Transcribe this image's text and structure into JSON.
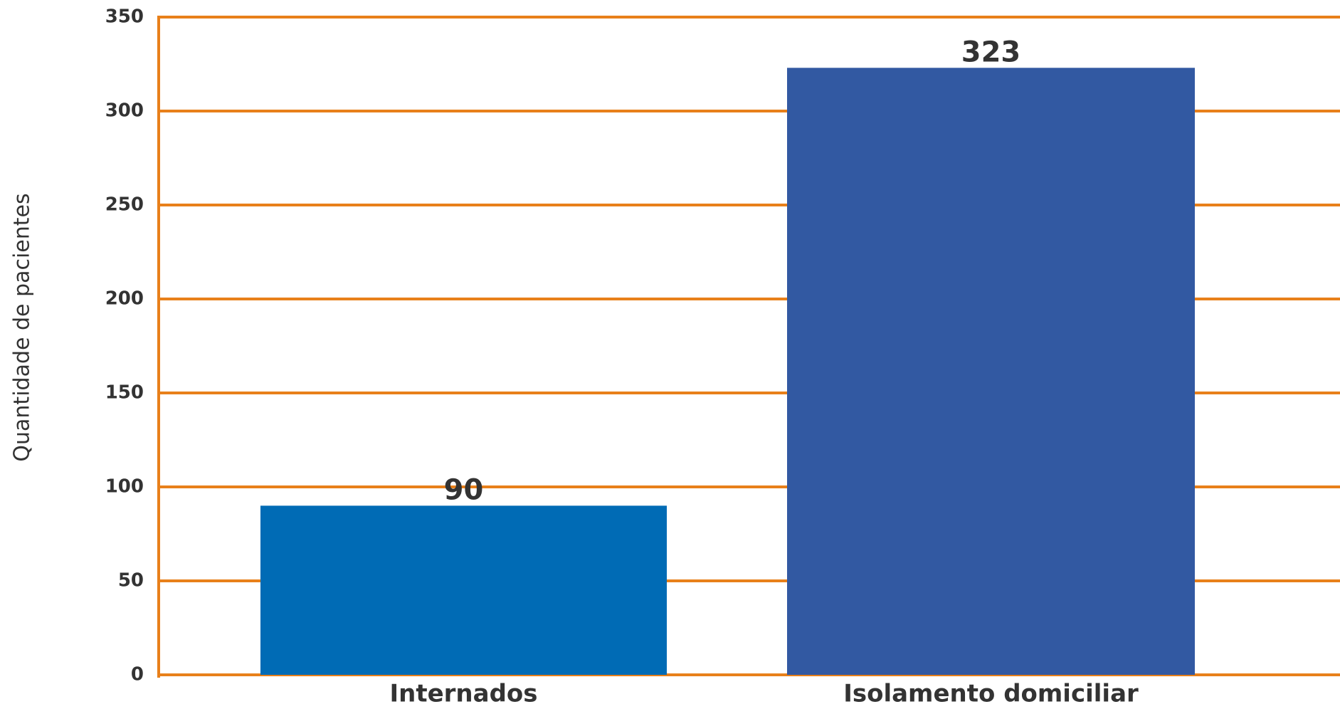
{
  "chart_data": {
    "type": "bar",
    "y_label": "Quantidade de pacientes",
    "categories": [
      "Internados",
      "Isolamento domiciliar"
    ],
    "values": [
      90,
      323
    ],
    "colors": [
      "#006bb5",
      "#3259a2"
    ],
    "ylim": [
      0,
      350
    ],
    "yticks": [
      0,
      50,
      100,
      150,
      200,
      250,
      300,
      350
    ],
    "grid": true,
    "grid_color": "#e8801a"
  }
}
